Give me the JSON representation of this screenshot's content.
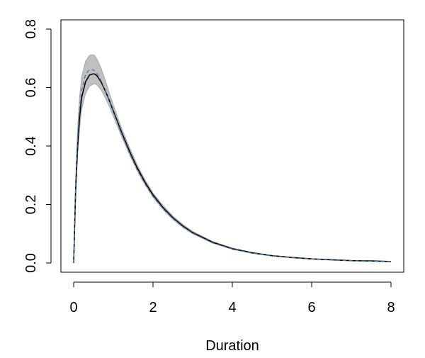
{
  "chart_data": {
    "type": "line",
    "title": "",
    "xlabel": "Duration",
    "ylabel": "",
    "xlim": [
      0,
      8
    ],
    "ylim": [
      0,
      0.8
    ],
    "x_ticks": [
      0,
      2,
      4,
      6,
      8
    ],
    "x_tick_labels": [
      "0",
      "2",
      "4",
      "6",
      "8"
    ],
    "y_ticks": [
      0.0,
      0.2,
      0.4,
      0.6,
      0.8
    ],
    "y_tick_labels": [
      "0.0",
      "0.2",
      "0.4",
      "0.6",
      "0.8"
    ],
    "grid": false,
    "legend": "none",
    "colors": {
      "estimate": "#000000",
      "reference": "#4477AA",
      "band_fill": "#c0c0c0",
      "band_edge": "#a8a8a8"
    },
    "x": [
      0,
      0.05,
      0.1,
      0.15,
      0.2,
      0.3,
      0.4,
      0.5,
      0.55,
      0.6,
      0.7,
      0.8,
      0.9,
      1.0,
      1.2,
      1.4,
      1.6,
      1.8,
      2.0,
      2.25,
      2.5,
      2.75,
      3.0,
      3.5,
      4.0,
      4.5,
      5.0,
      5.5,
      6.0,
      6.5,
      7.0,
      7.5,
      8.0
    ],
    "series": [
      {
        "role": "estimate",
        "style": "solid",
        "values": [
          0,
          0.25,
          0.4,
          0.5,
          0.565,
          0.62,
          0.643,
          0.647,
          0.645,
          0.638,
          0.617,
          0.588,
          0.555,
          0.52,
          0.45,
          0.385,
          0.326,
          0.276,
          0.233,
          0.19,
          0.155,
          0.127,
          0.104,
          0.071,
          0.049,
          0.035,
          0.025,
          0.019,
          0.014,
          0.011,
          0.008,
          0.007,
          0.005
        ]
      },
      {
        "role": "reference",
        "style": "dashed",
        "values": [
          0,
          0.27,
          0.43,
          0.53,
          0.59,
          0.645,
          0.662,
          0.66,
          0.655,
          0.646,
          0.621,
          0.589,
          0.553,
          0.516,
          0.444,
          0.378,
          0.319,
          0.27,
          0.228,
          0.186,
          0.152,
          0.124,
          0.102,
          0.069,
          0.048,
          0.034,
          0.025,
          0.018,
          0.014,
          0.01,
          0.008,
          0.006,
          0.005
        ]
      }
    ],
    "band": {
      "lower": [
        0,
        0.23,
        0.37,
        0.46,
        0.525,
        0.58,
        0.605,
        0.612,
        0.612,
        0.607,
        0.59,
        0.564,
        0.535,
        0.502,
        0.436,
        0.373,
        0.316,
        0.267,
        0.225,
        0.183,
        0.149,
        0.122,
        0.1,
        0.068,
        0.047,
        0.033,
        0.024,
        0.018,
        0.013,
        0.01,
        0.008,
        0.006,
        0.005
      ],
      "upper": [
        0,
        0.29,
        0.46,
        0.57,
        0.635,
        0.69,
        0.71,
        0.712,
        0.706,
        0.694,
        0.663,
        0.624,
        0.581,
        0.54,
        0.464,
        0.397,
        0.336,
        0.284,
        0.24,
        0.197,
        0.161,
        0.132,
        0.108,
        0.074,
        0.051,
        0.036,
        0.026,
        0.019,
        0.015,
        0.011,
        0.009,
        0.007,
        0.005
      ]
    }
  }
}
